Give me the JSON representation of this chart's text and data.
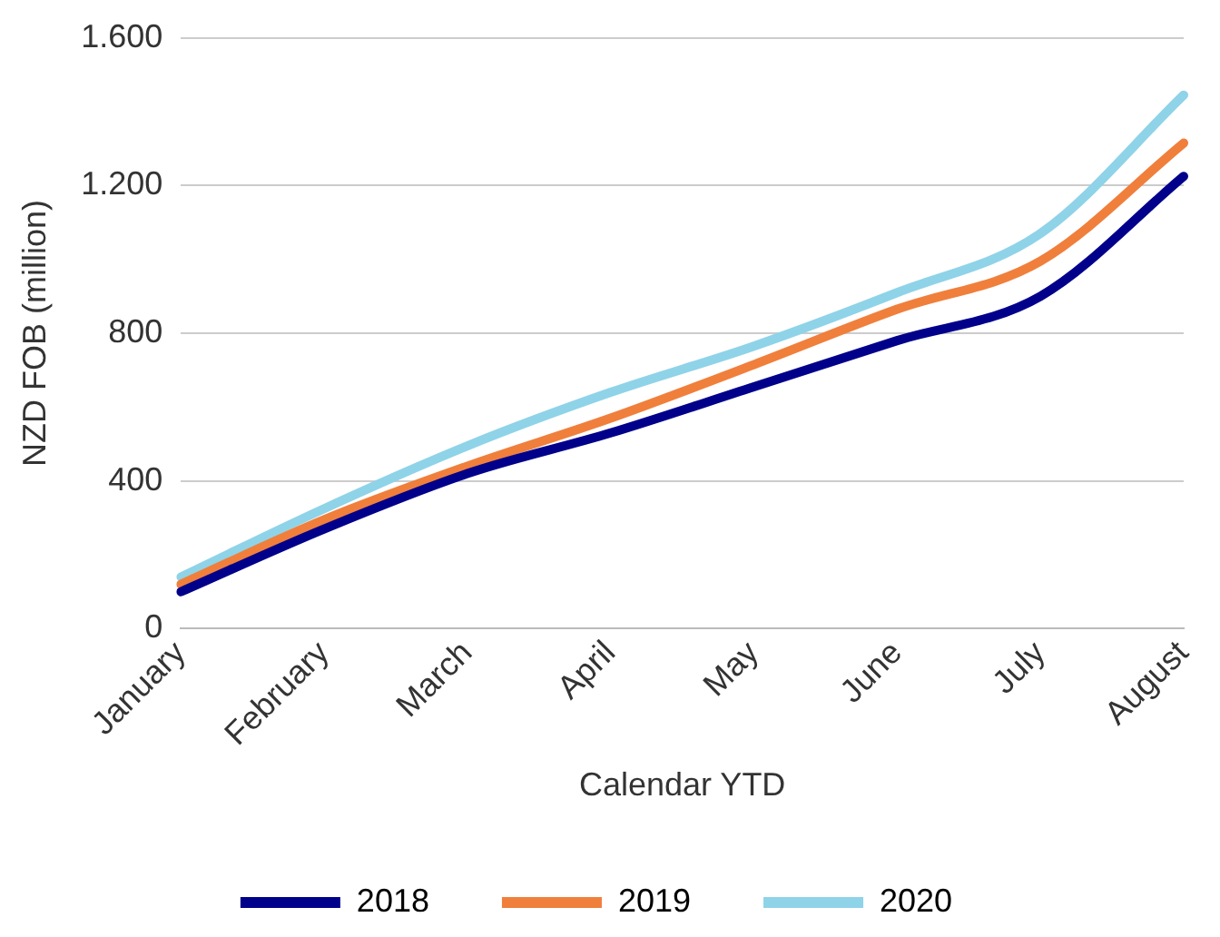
{
  "chart_data": {
    "type": "line",
    "xlabel": "Calendar YTD",
    "ylabel": "NZD FOB (million)",
    "categories": [
      "January",
      "February",
      "March",
      "April",
      "May",
      "June",
      "July",
      "August"
    ],
    "series": [
      {
        "name": "2018",
        "color": "#00008b",
        "values": [
          100,
          270,
          420,
          530,
          655,
          780,
          900,
          1225
        ]
      },
      {
        "name": "2019",
        "color": "#f07f3c",
        "values": [
          120,
          295,
          440,
          570,
          715,
          865,
          995,
          1315
        ]
      },
      {
        "name": "2020",
        "color": "#8fd3e8",
        "values": [
          140,
          325,
          495,
          640,
          765,
          910,
          1070,
          1445
        ]
      }
    ],
    "ylim": [
      0,
      1600
    ],
    "yticks": [
      0,
      400,
      800,
      {
        "value": 1200,
        "label": "1.200"
      },
      {
        "value": 1600,
        "label": "1.600"
      }
    ],
    "grid": "y",
    "legend": "bottom",
    "marker": "none",
    "line_style": "solid"
  }
}
